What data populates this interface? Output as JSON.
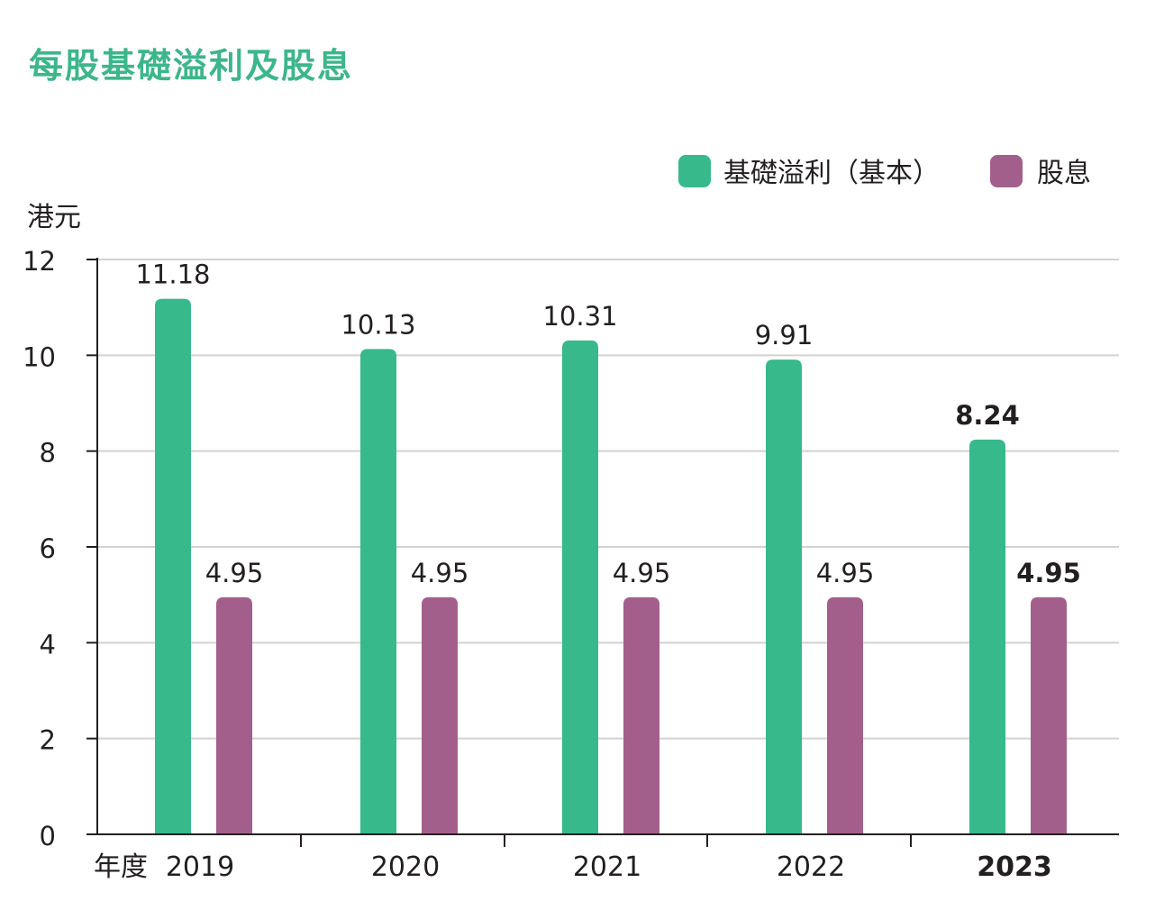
{
  "colors": {
    "title": "#3cb68b",
    "earnings": "#37b98b",
    "dividend": "#a35f8b",
    "grid": "#d2d2d2",
    "axis": "#231f20",
    "text": "#231f20"
  },
  "chart_data": {
    "type": "bar",
    "title": "每股基礎溢利及股息",
    "ylabel": "港元",
    "xlabel": "年度",
    "categories": [
      "2019",
      "2020",
      "2021",
      "2022",
      "2023"
    ],
    "highlight_category": "2023",
    "series": [
      {
        "name": "基礎溢利（基本）",
        "color": "#37b98b",
        "values": [
          11.18,
          10.13,
          10.31,
          9.91,
          8.24
        ],
        "labels": [
          "11.18",
          "10.13",
          "10.31",
          "9.91",
          "8.24"
        ]
      },
      {
        "name": "股息",
        "color": "#a35f8b",
        "values": [
          4.95,
          4.95,
          4.95,
          4.95,
          4.95
        ],
        "labels": [
          "4.95",
          "4.95",
          "4.95",
          "4.95",
          "4.95"
        ]
      }
    ],
    "ylim": [
      0,
      12
    ],
    "yticks": [
      0,
      2,
      4,
      6,
      8,
      10,
      12
    ],
    "grid": true,
    "legend_position": "top-right"
  }
}
